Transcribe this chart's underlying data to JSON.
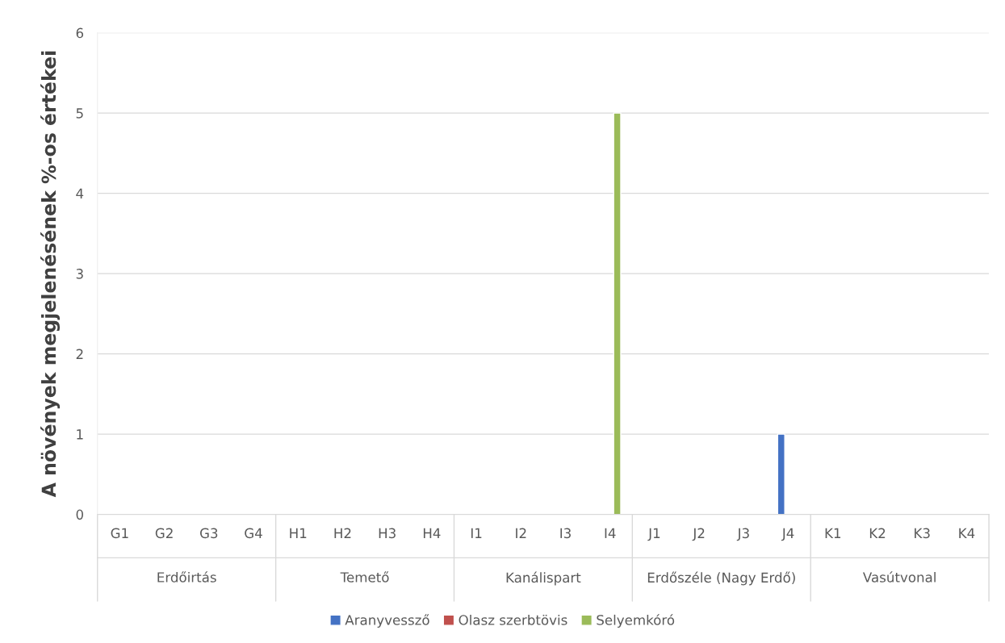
{
  "chart_data": {
    "type": "bar",
    "ylabel": "A növények megjelenésének %-os értékei",
    "categories": [
      "G1",
      "G2",
      "G3",
      "G4",
      "H1",
      "H2",
      "H3",
      "H4",
      "I1",
      "I2",
      "I3",
      "I4",
      "J1",
      "J2",
      "J3",
      "J4",
      "K1",
      "K2",
      "K3",
      "K4"
    ],
    "series": [
      {
        "name": "Aranyvessző",
        "color": "#4472c4",
        "values": [
          0,
          0,
          0,
          0,
          0,
          0,
          0,
          0,
          0,
          0,
          0,
          0,
          0,
          0,
          0,
          1,
          0,
          0,
          0,
          0
        ]
      },
      {
        "name": "Olasz szerbtövis",
        "color": "#c0504d",
        "values": [
          0,
          0,
          0,
          0,
          0,
          0,
          0,
          0,
          0,
          0,
          0,
          0,
          0,
          0,
          0,
          0,
          0,
          0,
          0,
          0
        ]
      },
      {
        "name": "Selyemkóró",
        "color": "#9bbb59",
        "values": [
          0,
          0,
          0,
          0,
          0,
          0,
          0,
          0,
          0,
          0,
          0,
          5,
          0,
          0,
          0,
          0,
          0,
          0,
          0,
          0
        ]
      }
    ],
    "annotations": [
      "Erdőirtás",
      "Temető",
      "Kanálispart",
      "Erdőszéle (Nagy Erdő)",
      "Vasútvonal"
    ],
    "ylim": [
      0,
      6
    ],
    "yticks": [
      0,
      1,
      2,
      3,
      4,
      5,
      6
    ],
    "grid": "y",
    "legend": "bottom"
  }
}
